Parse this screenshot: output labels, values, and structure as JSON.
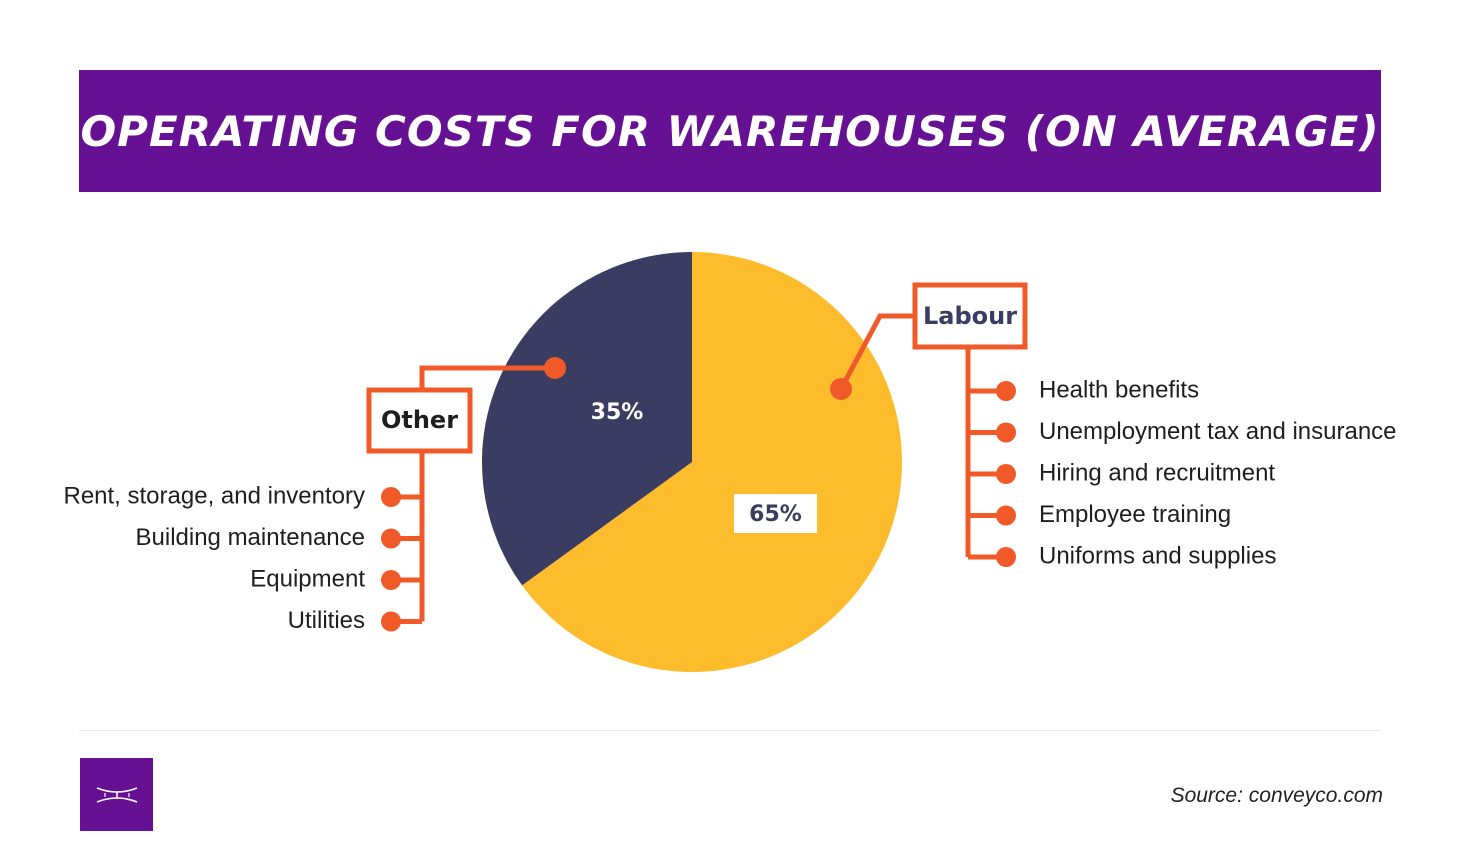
{
  "header": {
    "title": "OPERATING COSTS FOR WAREHOUSES (ON AVERAGE)"
  },
  "chart_data": {
    "type": "pie",
    "title": "OPERATING COSTS FOR WAREHOUSES (ON AVERAGE)",
    "slices": [
      {
        "name": "Labour",
        "value": 65,
        "label": "65%",
        "color": "#fdbc2c"
      },
      {
        "name": "Other",
        "value": 35,
        "label": "35%",
        "color": "#3b3c62"
      }
    ],
    "callouts": {
      "labour": {
        "title": "Labour",
        "items": [
          "Health benefits",
          "Unemployment tax and insurance",
          "Hiring and recruitment",
          "Employee training",
          "Uniforms and supplies"
        ]
      },
      "other": {
        "title": "Other",
        "items": [
          "Rent, storage, and inventory",
          "Building maintenance",
          "Equipment",
          "Utilities"
        ]
      }
    }
  },
  "colors": {
    "brand": "#661093",
    "accent": "#f05a28",
    "navy": "#3b3c62",
    "yellow": "#fdbc2c"
  },
  "footer": {
    "source": "Source: conveyco.com",
    "logo_icon": "conveyor-logo-icon"
  }
}
